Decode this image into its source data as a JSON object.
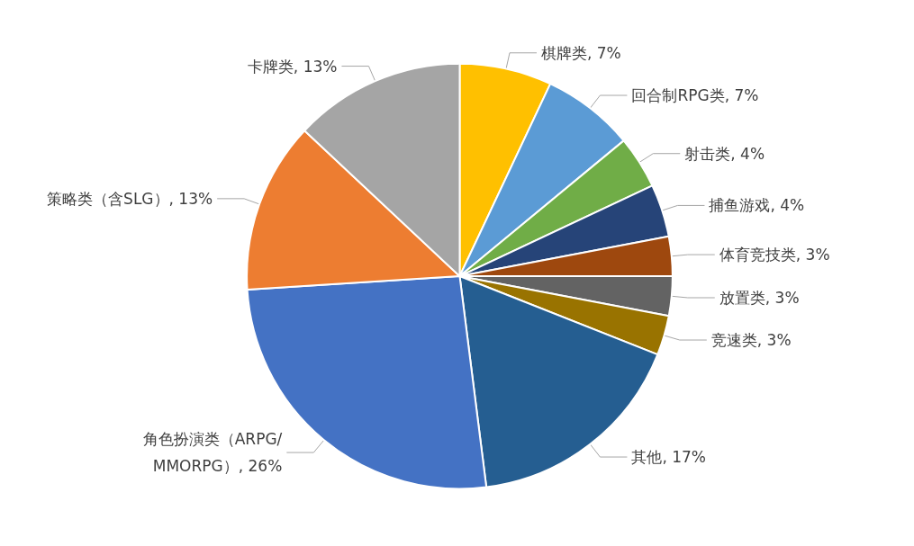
{
  "chart_data": {
    "type": "pie",
    "categories": [
      "棋牌类",
      "回合制RPG类",
      "射击类",
      "捕鱼游戏",
      "体育竞技类",
      "放置类",
      "竞速类",
      "其他",
      "角色扮演类（ARPG/MMORPG）",
      "策略类（含SLG）",
      "卡牌类"
    ],
    "values": [
      7,
      7,
      4,
      4,
      3,
      3,
      3,
      17,
      26,
      13,
      13
    ],
    "colors": [
      "#ffc000",
      "#5b9bd5",
      "#70ad47",
      "#264478",
      "#9e480e",
      "#636363",
      "#997300",
      "#255e91",
      "#4472c4",
      "#ed7d31",
      "#a5a5a5"
    ],
    "value_labels": [
      "7%",
      "7%",
      "4%",
      "4%",
      "3%",
      "3%",
      "3%",
      "17%",
      "26%",
      "13%",
      "13%"
    ],
    "legend": false
  }
}
